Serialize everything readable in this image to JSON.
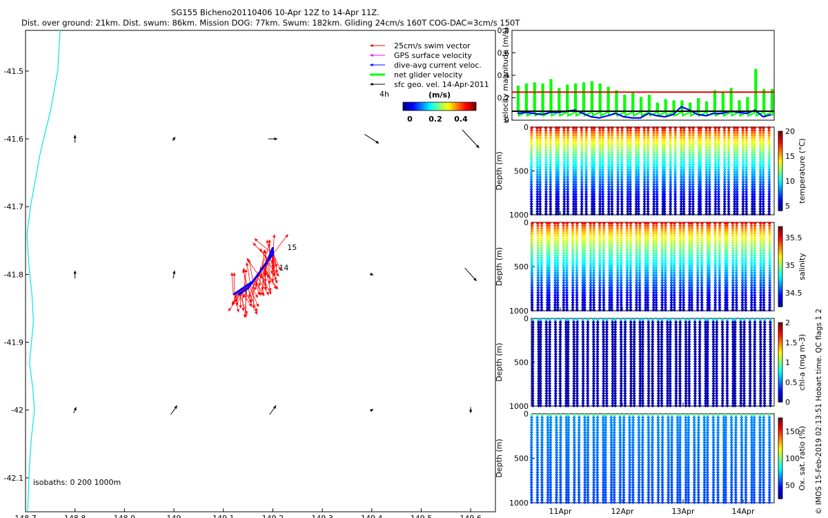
{
  "header": {
    "title": "SG155 Bicheno20110406 10-Apr 12Z to 14-Apr 11Z.",
    "subtitle": "Dist. over ground: 21km. Dist. swum: 86km. Mission DOG: 77km. Swum: 182km. Gliding 24cm/s 160T COG-DAC=3cm/s 150T"
  },
  "colors": {
    "coastline": "#00e5ee",
    "swim_vector": "#ff0000",
    "gps_velocity": "#ff00ff",
    "dac_velocity": "#0000ff",
    "net_velocity": "#00ff00",
    "geo_velocity": "#000000",
    "threshold_line": "#e00000",
    "mean_line": "#000000"
  },
  "colormap": [
    "#00008f",
    "#0000ff",
    "#0080ff",
    "#00ffff",
    "#80ff80",
    "#ffff00",
    "#ff8000",
    "#ff0000",
    "#800000"
  ],
  "chart_data": [
    {
      "id": "map",
      "type": "scatter",
      "title": "",
      "xlabel": "",
      "ylabel": "",
      "xlim": [
        148.7,
        149.65
      ],
      "ylim": [
        -42.15,
        -41.44
      ],
      "xticks": [
        "148.7",
        "148.8",
        "148.9",
        "149",
        "149.1",
        "149.2",
        "149.3",
        "149.4",
        "149.5",
        "149.6"
      ],
      "yticks": [
        "-41.5",
        "-41.6",
        "-41.7",
        "-41.8",
        "-41.9",
        "-42",
        "-42.1"
      ],
      "legend": {
        "placement": "top-right",
        "entries": [
          "25cm/s swim vector",
          "GPS surface velocity",
          "dive-avg current veloc.",
          "net glider velocity",
          "sfc geo. vel. 14-Apr-2011"
        ],
        "scale_label": "4h",
        "colorbar_title": "(m/s)",
        "colorbar_ticks": [
          "0",
          "0.2",
          "0.4"
        ]
      },
      "isobath_label": "isobaths: 0   200   1000m",
      "track_labels": [
        "15",
        "14"
      ],
      "coastline": [
        [
          148.77,
          -41.44
        ],
        [
          148.765,
          -41.5
        ],
        [
          148.75,
          -41.56
        ],
        [
          148.73,
          -41.62
        ],
        [
          148.72,
          -41.66
        ],
        [
          148.71,
          -41.7
        ],
        [
          148.703,
          -41.74
        ],
        [
          148.706,
          -41.78
        ],
        [
          148.713,
          -41.83
        ],
        [
          148.716,
          -41.87
        ],
        [
          148.712,
          -41.9
        ],
        [
          148.708,
          -41.93
        ],
        [
          148.715,
          -41.97
        ],
        [
          148.718,
          -42.0
        ],
        [
          148.712,
          -42.04
        ],
        [
          148.708,
          -42.08
        ],
        [
          148.706,
          -42.12
        ],
        [
          148.704,
          -42.15
        ]
      ],
      "geo_arrows": [
        {
          "lon": 148.8,
          "lat": -41.6,
          "u": 0.0,
          "v": 0.12
        },
        {
          "lon": 149.0,
          "lat": -41.6,
          "u": 0.04,
          "v": 0.06
        },
        {
          "lon": 149.2,
          "lat": -41.6,
          "u": 0.14,
          "v": 0.0
        },
        {
          "lon": 149.4,
          "lat": -41.6,
          "u": 0.22,
          "v": -0.14
        },
        {
          "lon": 149.6,
          "lat": -41.6,
          "u": 0.26,
          "v": -0.28
        },
        {
          "lon": 148.8,
          "lat": -41.8,
          "u": 0.0,
          "v": 0.12
        },
        {
          "lon": 149.0,
          "lat": -41.8,
          "u": 0.02,
          "v": 0.12
        },
        {
          "lon": 149.4,
          "lat": -41.8,
          "u": 0.05,
          "v": -0.02
        },
        {
          "lon": 149.6,
          "lat": -41.8,
          "u": 0.18,
          "v": -0.2
        },
        {
          "lon": 148.8,
          "lat": -42.0,
          "u": 0.04,
          "v": 0.09
        },
        {
          "lon": 149.0,
          "lat": -42.0,
          "u": 0.1,
          "v": 0.14
        },
        {
          "lon": 149.2,
          "lat": -42.0,
          "u": 0.1,
          "v": 0.14
        },
        {
          "lon": 149.4,
          "lat": -42.0,
          "u": 0.05,
          "v": 0.03
        },
        {
          "lon": 149.6,
          "lat": -42.0,
          "u": 0.0,
          "v": -0.09
        }
      ],
      "glider_track": [
        [
          149.12,
          -41.83
        ],
        [
          149.14,
          -41.82
        ],
        [
          149.16,
          -41.81
        ],
        [
          149.18,
          -41.79
        ],
        [
          149.19,
          -41.78
        ],
        [
          149.2,
          -41.77
        ],
        [
          149.2,
          -41.76
        ],
        [
          149.19,
          -41.78
        ],
        [
          149.17,
          -41.8
        ],
        [
          149.15,
          -41.82
        ],
        [
          149.13,
          -41.83
        ]
      ]
    },
    {
      "id": "velocity",
      "type": "line",
      "title": "",
      "ylabel": "velocity magnitude (m/s)",
      "ylim": [
        0,
        0.8
      ],
      "yticks": [
        "0",
        "0.2",
        "0.4",
        "0.6",
        "0.8"
      ],
      "threshold": 0.25,
      "mean": 0.08,
      "series": [
        {
          "values": [
            0.3,
            0.32,
            0.33,
            0.32,
            0.36,
            0.28,
            0.31,
            0.32,
            0.33,
            0.34,
            0.32,
            0.29,
            0.26,
            0.22,
            0.24,
            0.2,
            0.22,
            0.15,
            0.18,
            0.17,
            0.17,
            0.15,
            0.19,
            0.16,
            0.26,
            0.24,
            0.28,
            0.17,
            0.2,
            0.45,
            0.27,
            0.27
          ]
        },
        {
          "values": [
            0.06,
            0.07,
            0.06,
            0.05,
            0.07,
            0.07,
            0.08,
            0.09,
            0.06,
            0.03,
            0.02,
            0.04,
            0.06,
            0.03,
            0.02,
            0.02,
            0.06,
            0.04,
            0.03,
            0.05,
            0.12,
            0.09,
            0.05,
            0.04,
            0.06,
            0.06,
            0.08,
            0.07,
            0.06,
            0.09,
            0.03,
            0.05
          ]
        }
      ]
    },
    {
      "id": "temperature",
      "type": "scatter",
      "ylabel": "Depth (m)",
      "yticks": [
        "0",
        "500",
        "1000"
      ],
      "colorbar_label": "temperature (°C)",
      "colorbar_ticks": [
        "5",
        "10",
        "15",
        "20"
      ],
      "color_range": [
        4,
        20
      ],
      "value_range": [
        4,
        20
      ],
      "profiles": 27
    },
    {
      "id": "salinity",
      "type": "scatter",
      "ylabel": "Depth (m)",
      "yticks": [
        "0",
        "500",
        "1000"
      ],
      "colorbar_label": "salinity",
      "colorbar_ticks": [
        "34.5",
        "35",
        "35.5"
      ],
      "color_range": [
        34.25,
        35.7
      ],
      "value_range": [
        34.3,
        35.6
      ],
      "profiles": 27
    },
    {
      "id": "chla",
      "type": "scatter",
      "ylabel": "Depth (m)",
      "yticks": [
        "0",
        "500",
        "1000"
      ],
      "colorbar_label": "chl-a (mg m-3)",
      "colorbar_ticks": [
        "0",
        "0.5",
        "1",
        "1.5",
        "2"
      ],
      "color_range": [
        0,
        2
      ],
      "value_range": [
        0.05,
        0.7
      ],
      "profiles": 26
    },
    {
      "id": "oxygen",
      "type": "scatter",
      "ylabel": "Depth (m)",
      "yticks": [
        "0",
        "500",
        "1000"
      ],
      "xticks": [
        "11Apr",
        "12Apr",
        "13Apr",
        "14Apr"
      ],
      "colorbar_label": "Ox. sat. ratio (%)",
      "colorbar_ticks": [
        "50",
        "100",
        "150"
      ],
      "color_range": [
        25,
        175
      ],
      "value_range": [
        40,
        95
      ],
      "profiles": 26
    }
  ],
  "side_note": "© IMOS 15-Feb-2019 02:13:51 Hobart time. QC flags 1  2"
}
